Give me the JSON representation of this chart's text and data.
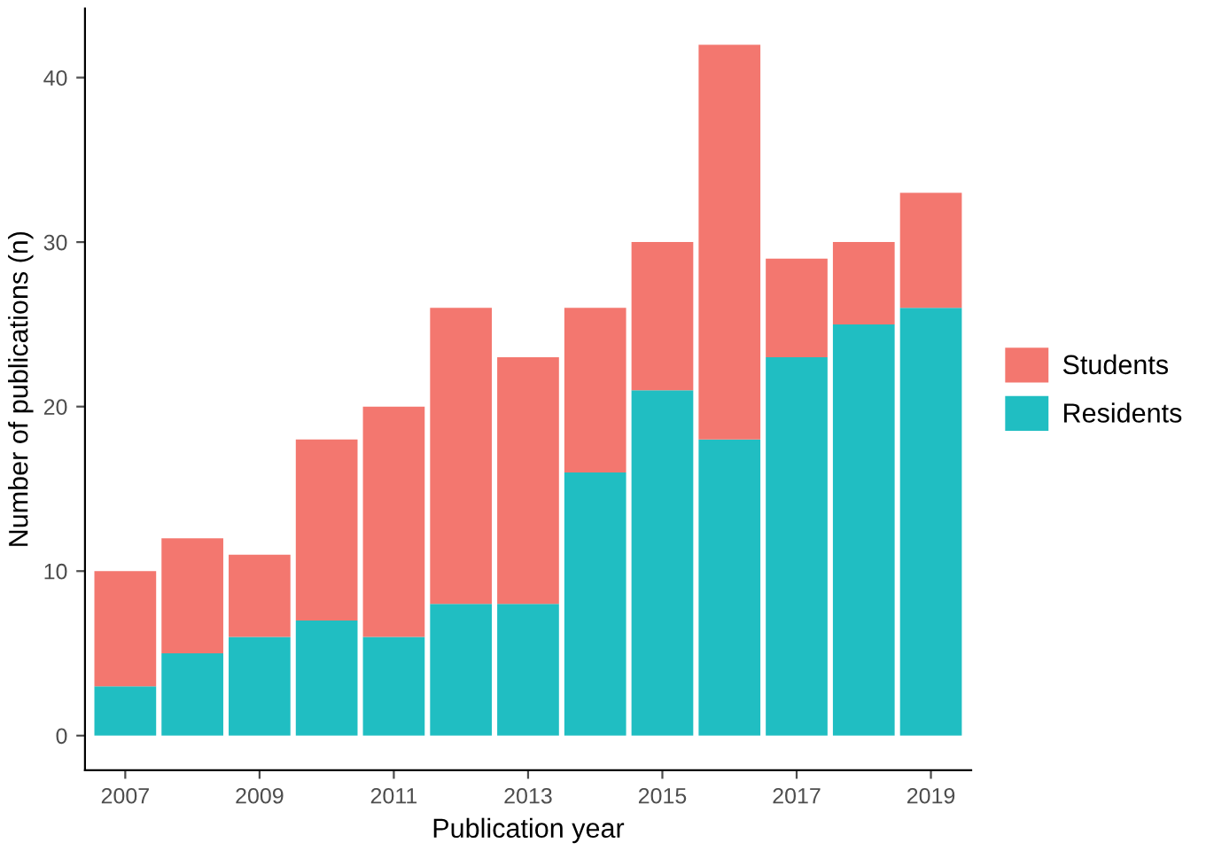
{
  "chart_data": {
    "type": "bar",
    "stacked": true,
    "xlabel": "Publication year",
    "ylabel": "Number of publications (n)",
    "x": [
      2007,
      2008,
      2009,
      2010,
      2011,
      2012,
      2013,
      2014,
      2015,
      2016,
      2017,
      2018,
      2019
    ],
    "series": [
      {
        "name": "Residents",
        "color": "#20bec2",
        "values": [
          3,
          5,
          6,
          7,
          6,
          8,
          8,
          16,
          21,
          18,
          23,
          25,
          26
        ]
      },
      {
        "name": "Students",
        "color": "#f3776f",
        "values": [
          7,
          7,
          5,
          11,
          14,
          18,
          15,
          10,
          9,
          24,
          6,
          5,
          7
        ]
      }
    ],
    "xlim": [
      2006.4,
      2019.6
    ],
    "xticks": [
      2007,
      2009,
      2011,
      2013,
      2015,
      2017,
      2019
    ],
    "ylim": [
      -2.1,
      44.2
    ],
    "yticks": [
      0,
      10,
      20,
      30,
      40
    ],
    "grid": false,
    "legend": "right"
  }
}
